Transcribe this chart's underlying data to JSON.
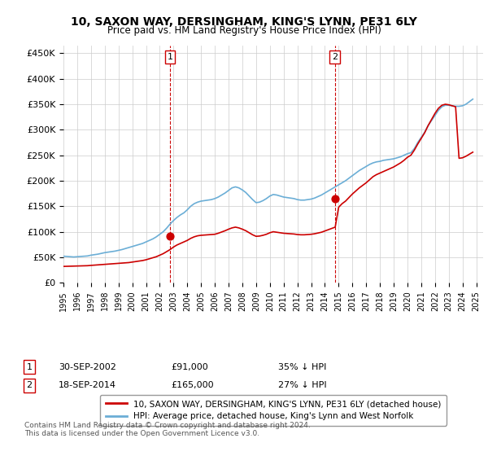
{
  "title": "10, SAXON WAY, DERSINGHAM, KING'S LYNN, PE31 6LY",
  "subtitle": "Price paid vs. HM Land Registry's House Price Index (HPI)",
  "ylabel_ticks": [
    "£0",
    "£50K",
    "£100K",
    "£150K",
    "£200K",
    "£250K",
    "£300K",
    "£350K",
    "£400K",
    "£450K"
  ],
  "ytick_values": [
    0,
    50000,
    100000,
    150000,
    200000,
    250000,
    300000,
    350000,
    400000,
    450000
  ],
  "ylim": [
    0,
    465000
  ],
  "xlim_start": 1995.0,
  "xlim_end": 2025.5,
  "sale1_date": 2002.75,
  "sale1_price": 91000,
  "sale1_label": "1",
  "sale2_date": 2014.72,
  "sale2_price": 165000,
  "sale2_label": "2",
  "hpi_color": "#6baed6",
  "property_color": "#cc0000",
  "vline_color": "#cc0000",
  "dot_color": "#cc0000",
  "background_color": "#ffffff",
  "grid_color": "#cccccc",
  "legend1_text": "10, SAXON WAY, DERSINGHAM, KING'S LYNN, PE31 6LY (detached house)",
  "legend2_text": "HPI: Average price, detached house, King's Lynn and West Norfolk",
  "note1": "1     30-SEP-2002          £91,000          35% ↓ HPI",
  "note2": "2     18-SEP-2014          £165,000         27% ↓ HPI",
  "footer": "Contains HM Land Registry data © Crown copyright and database right 2024.\nThis data is licensed under the Open Government Licence v3.0.",
  "hpi_data": [
    [
      1995.0,
      52000
    ],
    [
      1995.25,
      51500
    ],
    [
      1995.5,
      51000
    ],
    [
      1995.75,
      50500
    ],
    [
      1996.0,
      51000
    ],
    [
      1996.25,
      51500
    ],
    [
      1996.5,
      52000
    ],
    [
      1996.75,
      52500
    ],
    [
      1997.0,
      54000
    ],
    [
      1997.25,
      55000
    ],
    [
      1997.5,
      56000
    ],
    [
      1997.75,
      57500
    ],
    [
      1998.0,
      59000
    ],
    [
      1998.25,
      60000
    ],
    [
      1998.5,
      61000
    ],
    [
      1998.75,
      62000
    ],
    [
      1999.0,
      63500
    ],
    [
      1999.25,
      65000
    ],
    [
      1999.5,
      67000
    ],
    [
      1999.75,
      69000
    ],
    [
      2000.0,
      71000
    ],
    [
      2000.25,
      73000
    ],
    [
      2000.5,
      75000
    ],
    [
      2000.75,
      77000
    ],
    [
      2001.0,
      80000
    ],
    [
      2001.25,
      83000
    ],
    [
      2001.5,
      86000
    ],
    [
      2001.75,
      90000
    ],
    [
      2002.0,
      95000
    ],
    [
      2002.25,
      100000
    ],
    [
      2002.5,
      107000
    ],
    [
      2002.75,
      115000
    ],
    [
      2003.0,
      122000
    ],
    [
      2003.25,
      128000
    ],
    [
      2003.5,
      133000
    ],
    [
      2003.75,
      137000
    ],
    [
      2004.0,
      143000
    ],
    [
      2004.25,
      150000
    ],
    [
      2004.5,
      155000
    ],
    [
      2004.75,
      158000
    ],
    [
      2005.0,
      160000
    ],
    [
      2005.25,
      161000
    ],
    [
      2005.5,
      162000
    ],
    [
      2005.75,
      163000
    ],
    [
      2006.0,
      165000
    ],
    [
      2006.25,
      168000
    ],
    [
      2006.5,
      172000
    ],
    [
      2006.75,
      176000
    ],
    [
      2007.0,
      181000
    ],
    [
      2007.25,
      186000
    ],
    [
      2007.5,
      188000
    ],
    [
      2007.75,
      186000
    ],
    [
      2008.0,
      182000
    ],
    [
      2008.25,
      177000
    ],
    [
      2008.5,
      170000
    ],
    [
      2008.75,
      163000
    ],
    [
      2009.0,
      157000
    ],
    [
      2009.25,
      158000
    ],
    [
      2009.5,
      161000
    ],
    [
      2009.75,
      165000
    ],
    [
      2010.0,
      170000
    ],
    [
      2010.25,
      173000
    ],
    [
      2010.5,
      172000
    ],
    [
      2010.75,
      170000
    ],
    [
      2011.0,
      168000
    ],
    [
      2011.25,
      167000
    ],
    [
      2011.5,
      166000
    ],
    [
      2011.75,
      165000
    ],
    [
      2012.0,
      163000
    ],
    [
      2012.25,
      162000
    ],
    [
      2012.5,
      162000
    ],
    [
      2012.75,
      163000
    ],
    [
      2013.0,
      164000
    ],
    [
      2013.25,
      166000
    ],
    [
      2013.5,
      169000
    ],
    [
      2013.75,
      172000
    ],
    [
      2014.0,
      176000
    ],
    [
      2014.25,
      180000
    ],
    [
      2014.5,
      184000
    ],
    [
      2014.75,
      188000
    ],
    [
      2015.0,
      192000
    ],
    [
      2015.25,
      196000
    ],
    [
      2015.5,
      200000
    ],
    [
      2015.75,
      205000
    ],
    [
      2016.0,
      210000
    ],
    [
      2016.25,
      215000
    ],
    [
      2016.5,
      220000
    ],
    [
      2016.75,
      224000
    ],
    [
      2017.0,
      228000
    ],
    [
      2017.25,
      232000
    ],
    [
      2017.5,
      235000
    ],
    [
      2017.75,
      237000
    ],
    [
      2018.0,
      238000
    ],
    [
      2018.25,
      240000
    ],
    [
      2018.5,
      241000
    ],
    [
      2018.75,
      242000
    ],
    [
      2019.0,
      243000
    ],
    [
      2019.25,
      245000
    ],
    [
      2019.5,
      247000
    ],
    [
      2019.75,
      250000
    ],
    [
      2020.0,
      253000
    ],
    [
      2020.25,
      255000
    ],
    [
      2020.5,
      263000
    ],
    [
      2020.75,
      275000
    ],
    [
      2021.0,
      285000
    ],
    [
      2021.25,
      295000
    ],
    [
      2021.5,
      308000
    ],
    [
      2021.75,
      318000
    ],
    [
      2022.0,
      328000
    ],
    [
      2022.25,
      338000
    ],
    [
      2022.5,
      345000
    ],
    [
      2022.75,
      348000
    ],
    [
      2023.0,
      348000
    ],
    [
      2023.25,
      347000
    ],
    [
      2023.5,
      346000
    ],
    [
      2023.75,
      346000
    ],
    [
      2024.0,
      347000
    ],
    [
      2024.25,
      350000
    ],
    [
      2024.5,
      355000
    ],
    [
      2024.75,
      360000
    ]
  ],
  "property_data": [
    [
      1995.0,
      32000
    ],
    [
      1995.25,
      32200
    ],
    [
      1995.5,
      32400
    ],
    [
      1995.75,
      32600
    ],
    [
      1996.0,
      32800
    ],
    [
      1996.25,
      33000
    ],
    [
      1996.5,
      33200
    ],
    [
      1996.75,
      33400
    ],
    [
      1997.0,
      34000
    ],
    [
      1997.25,
      34500
    ],
    [
      1997.5,
      35000
    ],
    [
      1997.75,
      35500
    ],
    [
      1998.0,
      36000
    ],
    [
      1998.25,
      36500
    ],
    [
      1998.5,
      37000
    ],
    [
      1998.75,
      37500
    ],
    [
      1999.0,
      38000
    ],
    [
      1999.25,
      38500
    ],
    [
      1999.5,
      39000
    ],
    [
      1999.75,
      39500
    ],
    [
      2000.0,
      40500
    ],
    [
      2000.25,
      41500
    ],
    [
      2000.5,
      42500
    ],
    [
      2000.75,
      43500
    ],
    [
      2001.0,
      45000
    ],
    [
      2001.25,
      47000
    ],
    [
      2001.5,
      49000
    ],
    [
      2001.75,
      51000
    ],
    [
      2002.0,
      54000
    ],
    [
      2002.25,
      57000
    ],
    [
      2002.5,
      61000
    ],
    [
      2002.75,
      65000
    ],
    [
      2003.0,
      70000
    ],
    [
      2003.25,
      74000
    ],
    [
      2003.5,
      77000
    ],
    [
      2003.75,
      80000
    ],
    [
      2004.0,
      83000
    ],
    [
      2004.25,
      87000
    ],
    [
      2004.5,
      90000
    ],
    [
      2004.75,
      92000
    ],
    [
      2005.0,
      93000
    ],
    [
      2005.25,
      93500
    ],
    [
      2005.5,
      94000
    ],
    [
      2005.75,
      94500
    ],
    [
      2006.0,
      95000
    ],
    [
      2006.25,
      97000
    ],
    [
      2006.5,
      99500
    ],
    [
      2006.75,
      102000
    ],
    [
      2007.0,
      105000
    ],
    [
      2007.25,
      107500
    ],
    [
      2007.5,
      109000
    ],
    [
      2007.75,
      107500
    ],
    [
      2008.0,
      105000
    ],
    [
      2008.25,
      102000
    ],
    [
      2008.5,
      98000
    ],
    [
      2008.75,
      94000
    ],
    [
      2009.0,
      91000
    ],
    [
      2009.25,
      91500
    ],
    [
      2009.5,
      93000
    ],
    [
      2009.75,
      95000
    ],
    [
      2010.0,
      98000
    ],
    [
      2010.25,
      100000
    ],
    [
      2010.5,
      99000
    ],
    [
      2010.75,
      98000
    ],
    [
      2011.0,
      97000
    ],
    [
      2011.25,
      96500
    ],
    [
      2011.5,
      96000
    ],
    [
      2011.75,
      95500
    ],
    [
      2012.0,
      94500
    ],
    [
      2012.25,
      94000
    ],
    [
      2012.5,
      94000
    ],
    [
      2012.75,
      94500
    ],
    [
      2013.0,
      95000
    ],
    [
      2013.25,
      96000
    ],
    [
      2013.5,
      97500
    ],
    [
      2013.75,
      99000
    ],
    [
      2014.0,
      101500
    ],
    [
      2014.25,
      104000
    ],
    [
      2014.5,
      106500
    ],
    [
      2014.75,
      109000
    ],
    [
      2015.0,
      148000
    ],
    [
      2015.25,
      155000
    ],
    [
      2015.5,
      160000
    ],
    [
      2015.75,
      167000
    ],
    [
      2016.0,
      174000
    ],
    [
      2016.25,
      180000
    ],
    [
      2016.5,
      186000
    ],
    [
      2016.75,
      191000
    ],
    [
      2017.0,
      196000
    ],
    [
      2017.25,
      202000
    ],
    [
      2017.5,
      208000
    ],
    [
      2017.75,
      212000
    ],
    [
      2018.0,
      215000
    ],
    [
      2018.25,
      218000
    ],
    [
      2018.5,
      221000
    ],
    [
      2018.75,
      224000
    ],
    [
      2019.0,
      227000
    ],
    [
      2019.25,
      231000
    ],
    [
      2019.5,
      235000
    ],
    [
      2019.75,
      240000
    ],
    [
      2020.0,
      246000
    ],
    [
      2020.25,
      250000
    ],
    [
      2020.5,
      260000
    ],
    [
      2020.75,
      272000
    ],
    [
      2021.0,
      283000
    ],
    [
      2021.25,
      294000
    ],
    [
      2021.5,
      308000
    ],
    [
      2021.75,
      320000
    ],
    [
      2022.0,
      332000
    ],
    [
      2022.25,
      342000
    ],
    [
      2022.5,
      348000
    ],
    [
      2022.75,
      350000
    ],
    [
      2023.0,
      349000
    ],
    [
      2023.25,
      347000
    ],
    [
      2023.5,
      345000
    ],
    [
      2023.75,
      244000
    ],
    [
      2024.0,
      245000
    ],
    [
      2024.25,
      248000
    ],
    [
      2024.5,
      252000
    ],
    [
      2024.75,
      256000
    ]
  ]
}
